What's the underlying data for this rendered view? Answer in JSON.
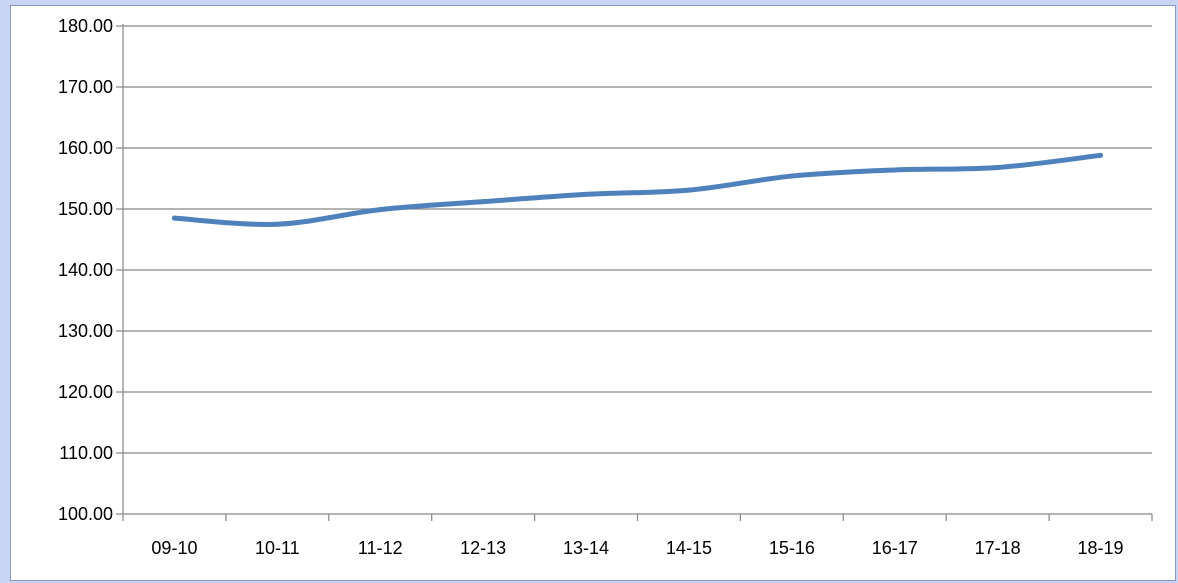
{
  "chart_data": {
    "type": "line",
    "title": "",
    "xlabel": "",
    "ylabel": "",
    "categories": [
      "09-10",
      "10-11",
      "11-12",
      "12-13",
      "13-14",
      "14-15",
      "15-16",
      "16-17",
      "17-18",
      "18-19"
    ],
    "series": [
      {
        "values": [
          148.5,
          147.5,
          149.9,
          151.2,
          152.4,
          153.1,
          155.4,
          156.4,
          156.8,
          158.8
        ],
        "color": "#4f81bd"
      }
    ],
    "ylim": [
      100,
      180
    ],
    "yticks": [
      "100.00",
      "110.00",
      "120.00",
      "130.00",
      "140.00",
      "150.00",
      "160.00",
      "170.00",
      "180.00"
    ],
    "grid": true,
    "legend": "none"
  }
}
